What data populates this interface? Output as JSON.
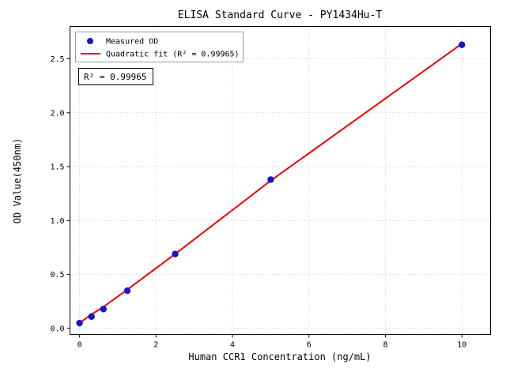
{
  "chart_data": {
    "type": "scatter",
    "title": "ELISA Standard Curve - PY1434Hu-T",
    "xlabel": "Human CCR1 Concentration (ng/mL)",
    "ylabel": "OD Value(450nm)",
    "annotation": "R² = 0.99965",
    "legend": [
      "Measured OD",
      "Quadratic fit (R² = 0.99965)"
    ],
    "legend_position": "upper left",
    "grid": "dotted",
    "xlim": [
      -0.25,
      10.75
    ],
    "ylim": [
      -0.055,
      2.8
    ],
    "x_ticks": [
      0,
      2,
      4,
      6,
      8,
      10
    ],
    "x_tick_labels": [
      "0",
      "2",
      "4",
      "6",
      "8",
      "10"
    ],
    "y_ticks": [
      0.0,
      0.5,
      1.0,
      1.5,
      2.0,
      2.5
    ],
    "y_tick_labels": [
      "0.0",
      "0.5",
      "1.0",
      "1.5",
      "2.0",
      "2.5"
    ],
    "series": [
      {
        "name": "Measured OD",
        "x": [
          0,
          0.3125,
          0.625,
          1.25,
          2.5,
          5,
          10
        ],
        "y": [
          0.05,
          0.11,
          0.18,
          0.35,
          0.69,
          1.38,
          2.63
        ]
      },
      {
        "name": "Quadratic fit",
        "x": [
          0,
          0.3125,
          0.625,
          1.25,
          2.5,
          5,
          10
        ],
        "y": [
          0.05,
          0.13,
          0.2,
          0.36,
          0.69,
          1.37,
          2.64
        ]
      }
    ],
    "r_squared": "0.99965",
    "colors": {
      "measured": "#1515cc",
      "fit": "#ee0000",
      "grid": "#b5b5b5"
    }
  }
}
